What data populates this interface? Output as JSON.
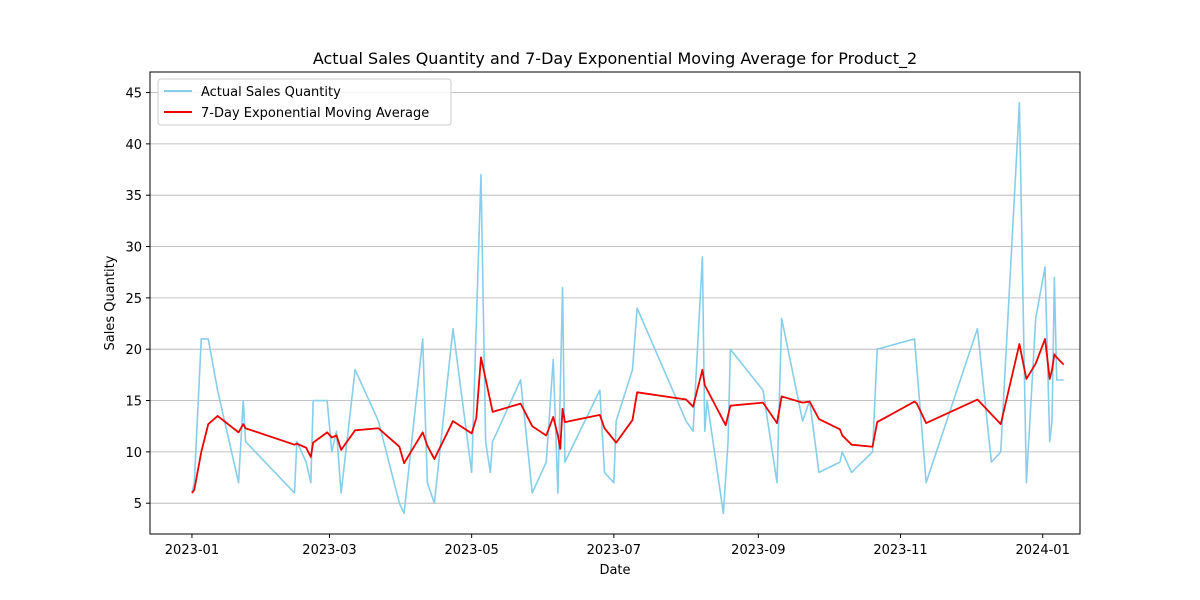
{
  "chart_data": {
    "type": "line",
    "title": "Actual Sales Quantity and 7-Day Exponential Moving Average for Product_2",
    "xlabel": "Date",
    "ylabel": "Sales Quantity",
    "ylim": [
      2.0,
      47.0
    ],
    "xlim": [
      "2022-12-14",
      "2024-01-17"
    ],
    "x_ticks": [
      "2023-01",
      "2023-03",
      "2023-05",
      "2023-07",
      "2023-09",
      "2023-11",
      "2024-01"
    ],
    "y_ticks": [
      5,
      10,
      15,
      20,
      25,
      30,
      35,
      40,
      45
    ],
    "grid": "y",
    "legend_position": "top-left",
    "series": [
      {
        "name": "Actual Sales Quantity",
        "color": "#87ceeb",
        "points": [
          [
            "2023-01-01",
            6
          ],
          [
            "2023-01-02",
            7
          ],
          [
            "2023-01-05",
            21
          ],
          [
            "2023-01-08",
            21
          ],
          [
            "2023-01-12",
            16
          ],
          [
            "2023-01-21",
            7
          ],
          [
            "2023-01-23",
            15
          ],
          [
            "2023-01-24",
            11
          ],
          [
            "2023-02-14",
            6
          ],
          [
            "2023-02-15",
            11
          ],
          [
            "2023-02-19",
            9
          ],
          [
            "2023-02-21",
            7
          ],
          [
            "2023-02-22",
            15
          ],
          [
            "2023-02-28",
            15
          ],
          [
            "2023-03-02",
            10
          ],
          [
            "2023-03-04",
            12
          ],
          [
            "2023-03-06",
            6
          ],
          [
            "2023-03-12",
            18
          ],
          [
            "2023-03-22",
            13
          ],
          [
            "2023-03-31",
            5
          ],
          [
            "2023-04-02",
            4
          ],
          [
            "2023-04-10",
            21
          ],
          [
            "2023-04-12",
            7
          ],
          [
            "2023-04-15",
            5
          ],
          [
            "2023-04-23",
            22
          ],
          [
            "2023-05-01",
            8
          ],
          [
            "2023-05-05",
            37
          ],
          [
            "2023-05-07",
            11
          ],
          [
            "2023-05-09",
            8
          ],
          [
            "2023-05-10",
            11
          ],
          [
            "2023-05-22",
            17
          ],
          [
            "2023-05-27",
            6
          ],
          [
            "2023-06-02",
            9
          ],
          [
            "2023-06-05",
            19
          ],
          [
            "2023-06-07",
            6
          ],
          [
            "2023-06-09",
            26
          ],
          [
            "2023-06-10",
            9
          ],
          [
            "2023-06-25",
            16
          ],
          [
            "2023-06-27",
            8
          ],
          [
            "2023-07-01",
            7
          ],
          [
            "2023-07-02",
            13
          ],
          [
            "2023-07-09",
            18
          ],
          [
            "2023-07-11",
            24
          ],
          [
            "2023-08-01",
            13
          ],
          [
            "2023-08-04",
            12
          ],
          [
            "2023-08-08",
            29
          ],
          [
            "2023-08-09",
            12
          ],
          [
            "2023-08-10",
            15
          ],
          [
            "2023-08-17",
            4
          ],
          [
            "2023-08-19",
            11
          ],
          [
            "2023-08-20",
            20
          ],
          [
            "2023-09-03",
            16
          ],
          [
            "2023-09-09",
            7
          ],
          [
            "2023-09-11",
            23
          ],
          [
            "2023-09-20",
            13
          ],
          [
            "2023-09-23",
            15
          ],
          [
            "2023-09-27",
            8
          ],
          [
            "2023-10-06",
            9
          ],
          [
            "2023-10-07",
            10
          ],
          [
            "2023-10-11",
            8
          ],
          [
            "2023-10-20",
            10
          ],
          [
            "2023-10-22",
            20
          ],
          [
            "2023-11-07",
            21
          ],
          [
            "2023-11-12",
            7
          ],
          [
            "2023-12-04",
            22
          ],
          [
            "2023-12-10",
            9
          ],
          [
            "2023-12-14",
            10
          ],
          [
            "2023-12-22",
            44
          ],
          [
            "2023-12-25",
            7
          ],
          [
            "2023-12-29",
            23
          ],
          [
            "2024-01-02",
            28
          ],
          [
            "2024-01-04",
            11
          ],
          [
            "2024-01-05",
            13
          ],
          [
            "2024-01-06",
            27
          ],
          [
            "2024-01-07",
            17
          ],
          [
            "2024-01-10",
            17
          ]
        ]
      },
      {
        "name": "7-Day Exponential Moving Average",
        "color": "#ee0000",
        "points": [
          [
            "2023-01-01",
            6.0
          ],
          [
            "2023-01-02",
            6.3
          ],
          [
            "2023-01-05",
            10.0
          ],
          [
            "2023-01-08",
            12.7
          ],
          [
            "2023-01-12",
            13.5
          ],
          [
            "2023-01-21",
            11.9
          ],
          [
            "2023-01-23",
            12.7
          ],
          [
            "2023-01-24",
            12.3
          ],
          [
            "2023-02-14",
            10.7
          ],
          [
            "2023-02-15",
            10.8
          ],
          [
            "2023-02-19",
            10.4
          ],
          [
            "2023-02-21",
            9.5
          ],
          [
            "2023-02-22",
            10.9
          ],
          [
            "2023-02-28",
            11.9
          ],
          [
            "2023-03-02",
            11.4
          ],
          [
            "2023-03-04",
            11.6
          ],
          [
            "2023-03-06",
            10.2
          ],
          [
            "2023-03-12",
            12.1
          ],
          [
            "2023-03-22",
            12.3
          ],
          [
            "2023-03-31",
            10.5
          ],
          [
            "2023-04-02",
            8.9
          ],
          [
            "2023-04-10",
            11.9
          ],
          [
            "2023-04-12",
            10.6
          ],
          [
            "2023-04-15",
            9.3
          ],
          [
            "2023-04-23",
            13.0
          ],
          [
            "2023-05-01",
            11.8
          ],
          [
            "2023-05-03",
            13.3
          ],
          [
            "2023-05-05",
            19.2
          ],
          [
            "2023-05-07",
            17.1
          ],
          [
            "2023-05-10",
            13.9
          ],
          [
            "2023-05-22",
            14.7
          ],
          [
            "2023-05-27",
            12.5
          ],
          [
            "2023-06-02",
            11.6
          ],
          [
            "2023-06-05",
            13.4
          ],
          [
            "2023-06-07",
            11.6
          ],
          [
            "2023-06-08",
            10.3
          ],
          [
            "2023-06-09",
            14.2
          ],
          [
            "2023-06-10",
            12.9
          ],
          [
            "2023-06-25",
            13.6
          ],
          [
            "2023-06-27",
            12.3
          ],
          [
            "2023-07-02",
            10.9
          ],
          [
            "2023-07-09",
            13.1
          ],
          [
            "2023-07-11",
            15.8
          ],
          [
            "2023-08-01",
            15.1
          ],
          [
            "2023-08-04",
            14.4
          ],
          [
            "2023-08-08",
            18.0
          ],
          [
            "2023-08-09",
            16.5
          ],
          [
            "2023-08-18",
            12.6
          ],
          [
            "2023-08-20",
            14.5
          ],
          [
            "2023-09-03",
            14.8
          ],
          [
            "2023-09-09",
            12.8
          ],
          [
            "2023-09-11",
            15.4
          ],
          [
            "2023-09-20",
            14.8
          ],
          [
            "2023-09-23",
            14.9
          ],
          [
            "2023-09-27",
            13.2
          ],
          [
            "2023-10-06",
            12.2
          ],
          [
            "2023-10-07",
            11.6
          ],
          [
            "2023-10-11",
            10.7
          ],
          [
            "2023-10-20",
            10.5
          ],
          [
            "2023-10-22",
            12.9
          ],
          [
            "2023-11-07",
            14.9
          ],
          [
            "2023-11-08",
            14.7
          ],
          [
            "2023-11-12",
            12.8
          ],
          [
            "2023-12-04",
            15.1
          ],
          [
            "2023-12-14",
            12.7
          ],
          [
            "2023-12-22",
            20.5
          ],
          [
            "2023-12-25",
            17.1
          ],
          [
            "2023-12-29",
            18.6
          ],
          [
            "2024-01-02",
            21.0
          ],
          [
            "2024-01-04",
            17.1
          ],
          [
            "2024-01-05",
            18.0
          ],
          [
            "2024-01-06",
            19.5
          ],
          [
            "2024-01-07",
            19.2
          ],
          [
            "2024-01-10",
            18.5
          ]
        ]
      }
    ]
  }
}
